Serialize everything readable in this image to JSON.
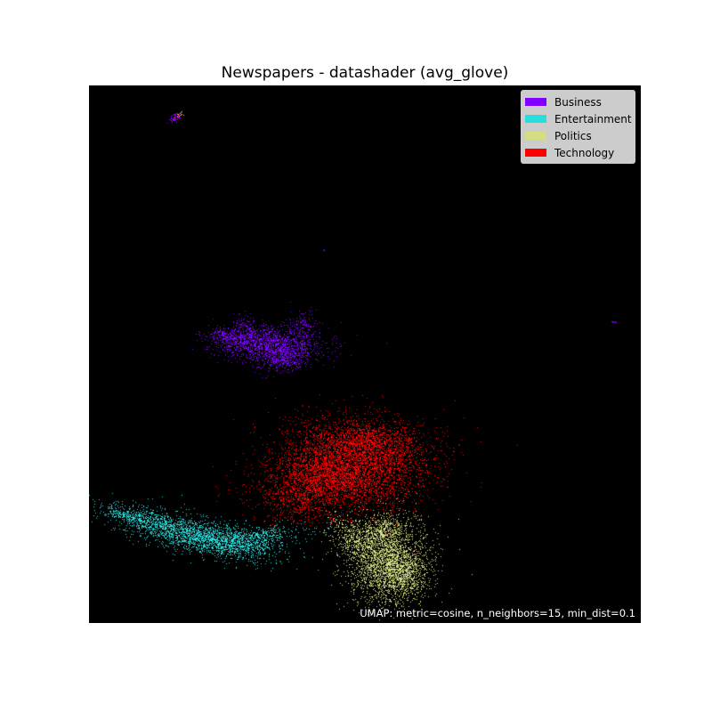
{
  "chart_data": {
    "type": "scatter",
    "title": "Newspapers - datashader (avg_glove)",
    "xlabel": "",
    "ylabel": "",
    "background": "#000000",
    "legend_position": "top-right",
    "annotation": "UMAP: metric=cosine, n_neighbors=15, min_dist=0.1",
    "series": [
      {
        "name": "Business",
        "color": "#8000ff"
      },
      {
        "name": "Entertainment",
        "color": "#2adddd"
      },
      {
        "name": "Politics",
        "color": "#d4dd80"
      },
      {
        "name": "Technology",
        "color": "#ff0000"
      }
    ]
  }
}
